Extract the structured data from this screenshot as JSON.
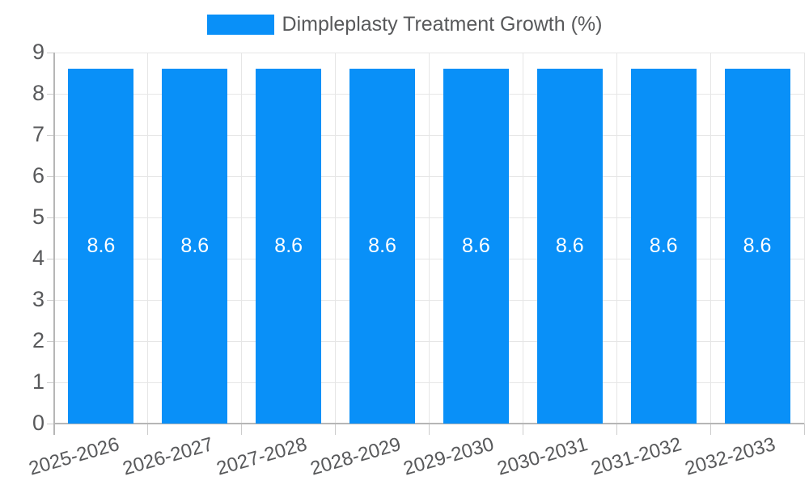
{
  "chart_data": {
    "type": "bar",
    "title": "Dimpleplasty Treatment Growth (%)",
    "categories": [
      "2025-2026",
      "2026-2027",
      "2027-2028",
      "2028-2029",
      "2029-2030",
      "2030-2031",
      "2031-2032",
      "2032-2033"
    ],
    "series": [
      {
        "name": "Dimpleplasty Treatment Growth (%)",
        "values": [
          8.6,
          8.6,
          8.6,
          8.6,
          8.6,
          8.6,
          8.6,
          8.6
        ]
      }
    ],
    "bar_labels": [
      "8.6",
      "8.6",
      "8.6",
      "8.6",
      "8.6",
      "8.6",
      "8.6",
      "8.6"
    ],
    "xlabel": "",
    "ylabel": "",
    "ylim": [
      0,
      9
    ],
    "yticks": [
      0,
      1,
      2,
      3,
      4,
      5,
      6,
      7,
      8,
      9
    ],
    "grid": true,
    "legend_position": "top"
  },
  "legend": {
    "label": "Dimpleplasty Treatment Growth (%)"
  },
  "colors": {
    "bar": "#0990f8",
    "bar_label": "#ffffff",
    "grid_line": "#e6e6e6",
    "axis_line": "#b6b6b6",
    "tick_mark": "#cccccc",
    "tick_text": "#58595b",
    "legend_text": "#58595b",
    "background": "#ffffff"
  }
}
